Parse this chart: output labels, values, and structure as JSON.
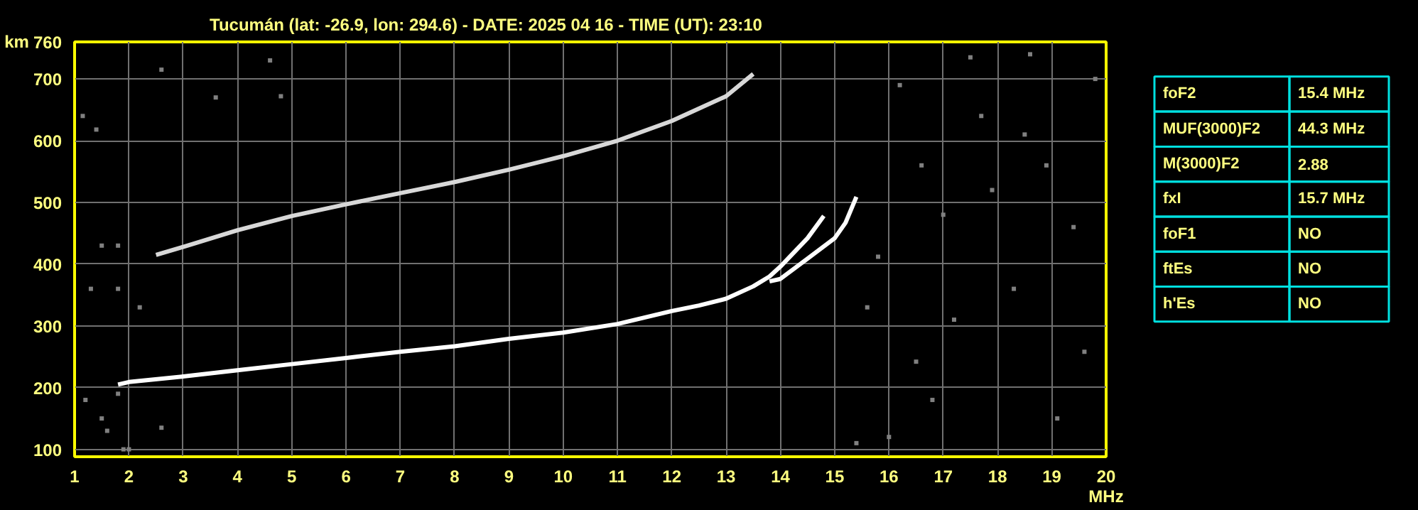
{
  "chart_data": [
    {
      "type": "line",
      "title": "Tucumán (lat: -26.9, lon: 294.6) - DATE: 2025 04 16 - TIME (UT): 23:10",
      "xlabel": "MHz",
      "ylabel": "km",
      "xlim": [
        1,
        20
      ],
      "ylim": [
        88,
        760
      ],
      "xticks": [
        1,
        2,
        3,
        4,
        5,
        6,
        7,
        8,
        9,
        10,
        11,
        12,
        13,
        14,
        15,
        16,
        17,
        18,
        19,
        20
      ],
      "yticks": [
        100,
        200,
        300,
        400,
        500,
        600,
        700,
        760
      ],
      "grid": true,
      "line_style": "solid",
      "series": [
        {
          "type": "line",
          "color": "#ffffff",
          "x": [
            1.8,
            2,
            3,
            4,
            5,
            6,
            7,
            8,
            9,
            10,
            11,
            12,
            12.5,
            13,
            13.5,
            13.8,
            14,
            14.5,
            14.8
          ],
          "values": [
            205,
            209,
            218,
            228,
            238,
            248,
            258,
            267,
            279,
            289,
            303,
            324,
            333,
            344,
            364,
            380,
            396,
            442,
            478
          ]
        },
        {
          "type": "line",
          "color": "#ffffff",
          "x": [
            13.8,
            14,
            14.5,
            15,
            15.2,
            15.4
          ],
          "values": [
            372,
            376,
            409,
            442,
            467,
            509
          ]
        },
        {
          "type": "line",
          "color": "#d8d8d8",
          "x": [
            2.5,
            3,
            4,
            5,
            6,
            7,
            8,
            9,
            10,
            11,
            12,
            13,
            13.5
          ],
          "values": [
            415,
            428,
            455,
            478,
            497,
            515,
            533,
            553,
            575,
            600,
            632,
            672,
            708
          ]
        },
        {
          "type": "scatter",
          "color": "#808080",
          "x": [
            1.15,
            1.4,
            2.6,
            4.6,
            4.8,
            3.6,
            1.3,
            1.8,
            1.2,
            1.5,
            1.6,
            1.8,
            2.6,
            1.9,
            2.0,
            2.2,
            1.5,
            1.8,
            15.8,
            16.5,
            17.2,
            17.9,
            18.5,
            19.1,
            19.6,
            16.2,
            17.5,
            18.3,
            19.4,
            16.8,
            15.6,
            18.9,
            17.0,
            19.8,
            16.0,
            15.4,
            18.6,
            17.7,
            16.6
          ],
          "values": [
            640,
            618,
            715,
            730,
            672,
            670,
            360,
            360,
            180,
            150,
            130,
            190,
            135,
            100,
            100,
            330,
            430,
            430,
            412,
            242,
            310,
            520,
            610,
            150,
            258,
            690,
            735,
            360,
            460,
            180,
            330,
            560,
            480,
            700,
            120,
            110,
            740,
            640,
            560
          ]
        }
      ]
    },
    {
      "type": "other",
      "categories": [
        "foF2",
        "MUF(3000)F2",
        "M(3000)F2",
        "fxI",
        "foF1",
        "ftEs",
        "h'Es"
      ],
      "value_labels": [
        "15.4 MHz",
        "44.3 MHz",
        "2.88",
        "15.7 MHz",
        "NO",
        "NO",
        "NO"
      ]
    }
  ]
}
